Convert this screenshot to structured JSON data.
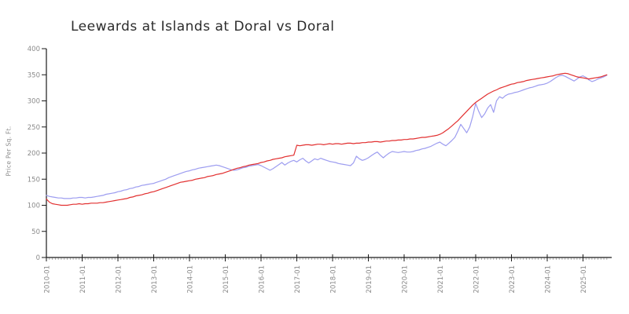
{
  "title": "Leewards at Islands at Doral vs Doral",
  "colors": {
    "red_series": "#e23030",
    "blue_series": "#9d9df0",
    "axis": "#1a1a1a",
    "tick_label": "#8a8a8a",
    "minor_tick": "#9a9a9a",
    "title_text": "#2b2b2b",
    "background": "#ffffff"
  },
  "chart_data": {
    "type": "line",
    "title": "Leewards at Islands at Doral vs Doral",
    "xlabel": "",
    "ylabel": "Price Per Sq. Ft.",
    "ylim": [
      0,
      400
    ],
    "y_ticks": [
      0,
      50,
      100,
      150,
      200,
      250,
      300,
      350,
      400
    ],
    "x_tick_labels": [
      "2010-01",
      "2011-01",
      "2012-01",
      "2013-01",
      "2014-01",
      "2015-01",
      "2016-01",
      "2017-01",
      "2018-01",
      "2019-01",
      "2020-01",
      "2021-01",
      "2022-01",
      "2023-01",
      "2024-01",
      "2025-01"
    ],
    "x_start": "2010-01",
    "x_end": "2025-09",
    "x_interval": "monthly",
    "months_per_tick": 12,
    "grid": false,
    "legend_position": "none",
    "series": [
      {
        "name": "Leewards at Islands at Doral",
        "color": "#9d9df0",
        "values": [
          119,
          117,
          116,
          115,
          114,
          114,
          113,
          113,
          113,
          114,
          114,
          115,
          115,
          114,
          115,
          115,
          116,
          117,
          118,
          119,
          121,
          122,
          123,
          124,
          126,
          127,
          129,
          130,
          132,
          133,
          135,
          136,
          138,
          139,
          140,
          141,
          142,
          144,
          146,
          148,
          150,
          153,
          155,
          157,
          159,
          161,
          163,
          165,
          166,
          168,
          169,
          171,
          172,
          173,
          174,
          175,
          176,
          177,
          176,
          174,
          172,
          170,
          168,
          167,
          168,
          170,
          172,
          173,
          175,
          176,
          177,
          178,
          176,
          173,
          170,
          167,
          170,
          174,
          178,
          182,
          177,
          181,
          184,
          186,
          183,
          187,
          190,
          185,
          181,
          185,
          189,
          187,
          190,
          188,
          186,
          184,
          183,
          182,
          180,
          179,
          178,
          177,
          176,
          181,
          194,
          189,
          186,
          188,
          191,
          195,
          199,
          202,
          196,
          191,
          196,
          200,
          203,
          202,
          201,
          202,
          203,
          202,
          202,
          203,
          205,
          206,
          208,
          209,
          211,
          213,
          216,
          219,
          221,
          217,
          214,
          219,
          224,
          230,
          242,
          255,
          247,
          239,
          250,
          270,
          295,
          280,
          268,
          275,
          286,
          293,
          278,
          300,
          308,
          305,
          310,
          313,
          314,
          316,
          317,
          319,
          321,
          323,
          325,
          326,
          328,
          330,
          331,
          332,
          334,
          337,
          341,
          345,
          348,
          349,
          347,
          344,
          341,
          338,
          342,
          346,
          348,
          345,
          340,
          337,
          339,
          342,
          344,
          346,
          349
        ]
      },
      {
        "name": "Doral",
        "color": "#e23030",
        "values": [
          112,
          106,
          103,
          102,
          101,
          100,
          100,
          100,
          101,
          102,
          102,
          103,
          102,
          103,
          103,
          104,
          104,
          104,
          105,
          105,
          106,
          107,
          108,
          109,
          110,
          111,
          112,
          113,
          115,
          116,
          118,
          119,
          120,
          122,
          123,
          125,
          126,
          128,
          130,
          132,
          134,
          136,
          138,
          140,
          142,
          144,
          145,
          146,
          147,
          148,
          150,
          151,
          152,
          153,
          155,
          156,
          157,
          159,
          160,
          161,
          163,
          165,
          167,
          169,
          171,
          172,
          174,
          175,
          177,
          178,
          179,
          180,
          182,
          183,
          185,
          186,
          188,
          189,
          190,
          191,
          193,
          194,
          195,
          196,
          215,
          214,
          215,
          216,
          216,
          215,
          216,
          217,
          217,
          216,
          217,
          218,
          217,
          218,
          218,
          217,
          218,
          219,
          219,
          218,
          219,
          219,
          220,
          220,
          221,
          221,
          222,
          222,
          221,
          222,
          223,
          223,
          224,
          224,
          225,
          225,
          226,
          226,
          227,
          227,
          228,
          229,
          230,
          230,
          231,
          232,
          233,
          234,
          236,
          239,
          243,
          247,
          252,
          257,
          262,
          268,
          274,
          280,
          286,
          292,
          297,
          301,
          305,
          309,
          313,
          316,
          319,
          321,
          324,
          326,
          328,
          330,
          332,
          333,
          335,
          336,
          337,
          339,
          340,
          341,
          342,
          343,
          344,
          345,
          346,
          347,
          348,
          350,
          351,
          352,
          353,
          352,
          350,
          348,
          346,
          345,
          344,
          343,
          342,
          343,
          344,
          345,
          346,
          348,
          350
        ]
      }
    ]
  }
}
